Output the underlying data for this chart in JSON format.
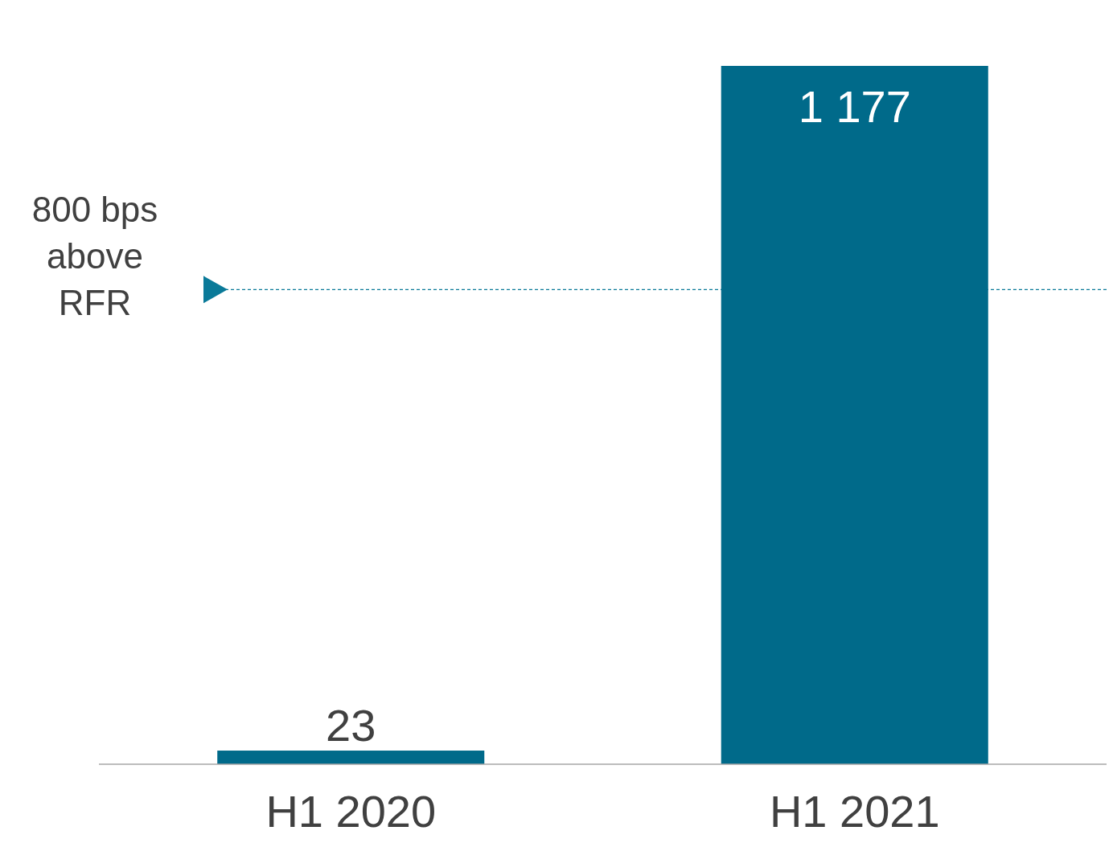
{
  "chart_data": {
    "type": "bar",
    "categories": [
      "H1 2020",
      "H1 2021"
    ],
    "values": [
      23,
      1177
    ],
    "color": "#006a8a",
    "value_labels": [
      "23",
      "1 177"
    ],
    "ref_lines": [
      {
        "axis": "y",
        "value": 800,
        "label": "800 bps above RFR",
        "color": "#0a7a99",
        "line_style": "dashed"
      }
    ]
  }
}
